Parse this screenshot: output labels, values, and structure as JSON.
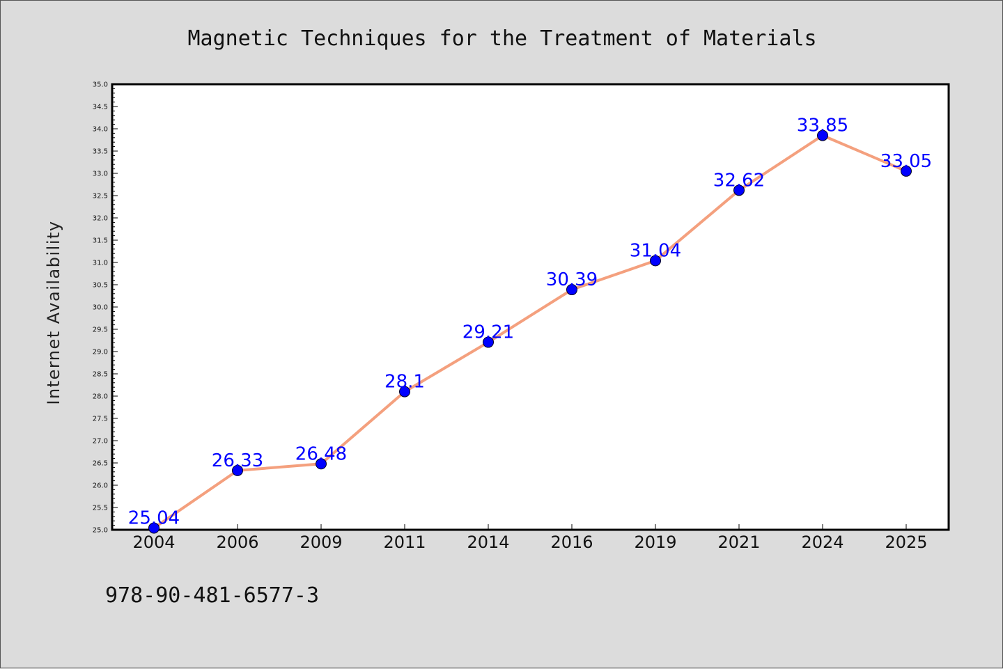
{
  "chart_data": {
    "type": "line",
    "title": "Magnetic Techniques for the Treatment of Materials",
    "xlabel": "",
    "ylabel": "Internet Availability",
    "categories": [
      "2004",
      "2006",
      "2009",
      "2011",
      "2014",
      "2016",
      "2019",
      "2021",
      "2024",
      "2025"
    ],
    "series": [
      {
        "values": [
          25.04,
          26.33,
          26.48,
          28.1,
          29.21,
          30.39,
          31.04,
          32.62,
          33.85,
          33.05
        ],
        "labels": [
          "25.04",
          "26.33",
          "26.48",
          "28.1",
          "29.21",
          "30.39",
          "31.04",
          "32.62",
          "33.85",
          "33.05"
        ]
      }
    ],
    "ylim": [
      25.0,
      35.0
    ],
    "yticks": [
      "25.0",
      "25.5",
      "26.0",
      "26.5",
      "27.0",
      "27.5",
      "28.0",
      "28.5",
      "29.0",
      "29.5",
      "30.0",
      "30.5",
      "31.0",
      "31.5",
      "32.0",
      "32.5",
      "33.0",
      "33.5",
      "34.0",
      "34.5",
      "35.0"
    ],
    "grid": false,
    "line_color": "#f4a07e",
    "marker_color": "#0000ff",
    "label_color": "#0000ff",
    "annotations": [
      "978-90-481-6577-3"
    ]
  }
}
